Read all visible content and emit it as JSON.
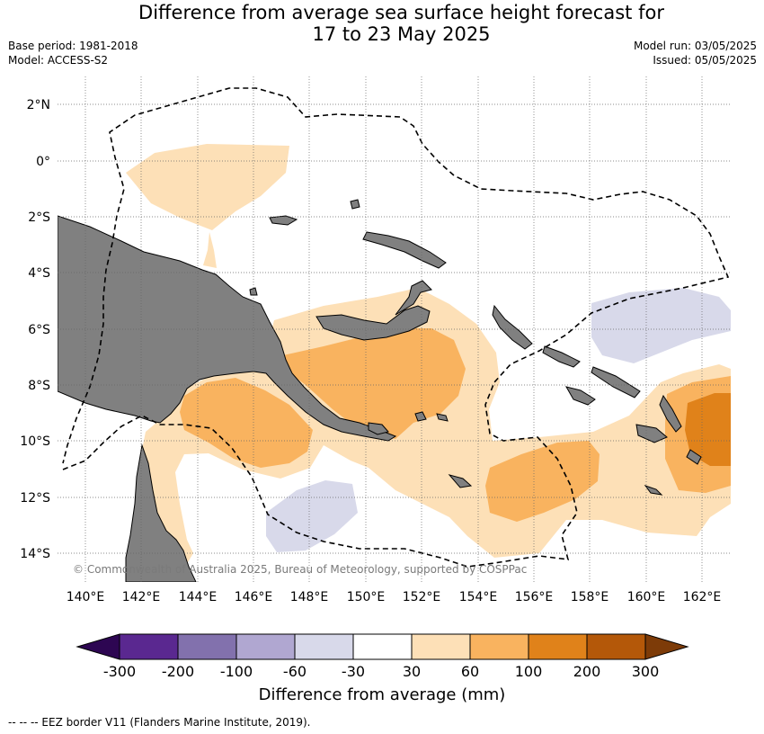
{
  "title_line1": "Difference from average sea surface height forecast for",
  "title_line2": "17 to 23 May 2025",
  "base_period": "Base period: 1981-2018",
  "model": "Model: ACCESS-S2",
  "model_run": "Model run: 03/05/2025",
  "issued": "Issued: 05/05/2025",
  "map": {
    "lon_labels": [
      "140°E",
      "142°E",
      "144°E",
      "146°E",
      "148°E",
      "150°E",
      "152°E",
      "154°E",
      "156°E",
      "158°E",
      "160°E",
      "162°E"
    ],
    "lat_labels": [
      "2°N",
      "0°",
      "2°S",
      "4°S",
      "6°S",
      "8°S",
      "10°S",
      "12°S",
      "14°S"
    ],
    "copyright": "© Commonwealth of Australia 2025, Bureau of Meteorology, supported by COSPPac",
    "colors": {
      "land": "#808080",
      "neg_60_30": "#d8d9ea",
      "pos_30_60": "#fde0b7",
      "pos_60_100": "#f9b35f",
      "pos_100_200": "#e0821a"
    }
  },
  "legend": {
    "title": "Difference from average (mm)",
    "ticks": [
      "-300",
      "-200",
      "-100",
      "-60",
      "-30",
      "30",
      "60",
      "100",
      "200",
      "300"
    ],
    "bin_colors": [
      "#5a2890",
      "#8271ad",
      "#b0a7d1",
      "#d8d9ea",
      "#ffffff",
      "#fde0b7",
      "#f9b35f",
      "#e0821a",
      "#b45809"
    ],
    "extend_low_color": "#2d0652",
    "extend_high_color": "#7d3b08"
  },
  "footer": "-- -- -- EEZ border V11 (Flanders Marine Institute, 2019)."
}
